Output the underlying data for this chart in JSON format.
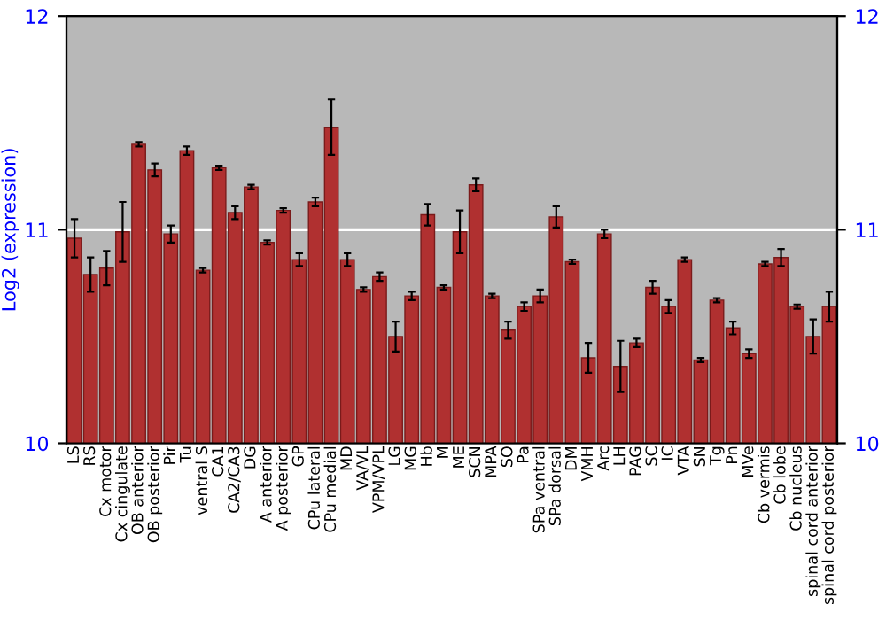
{
  "chart_data": {
    "type": "bar",
    "ylabel": "Log2 (expression)",
    "categories": [
      "LS",
      "RS",
      "Cx motor",
      "Cx cingulate",
      "OB anterior",
      "OB posterior",
      "Pir",
      "Tu",
      "ventral S",
      "CA1",
      "CA2/CA3",
      "DG",
      "A anterior",
      "A posterior",
      "GP",
      "CPu lateral",
      "CPu medial",
      "MD",
      "VA/VL",
      "VPM/VPL",
      "LG",
      "MG",
      "Hb",
      "M",
      "ME",
      "SCN",
      "MPA",
      "SO",
      "Pa",
      "SPa ventral",
      "SPa dorsal",
      "DM",
      "VMH",
      "Arc",
      "LH",
      "PAG",
      "SC",
      "IC",
      "VTA",
      "SN",
      "Tg",
      "Pn",
      "MVe",
      "Cb vermis",
      "Cb lobe",
      "Cb nucleus",
      "spinal cord anterior",
      "spinal cord posterior"
    ],
    "values": [
      10.96,
      10.79,
      10.82,
      10.99,
      11.4,
      11.28,
      10.98,
      11.37,
      10.81,
      11.29,
      11.08,
      11.2,
      10.94,
      11.09,
      10.86,
      11.13,
      11.48,
      10.86,
      10.72,
      10.78,
      10.5,
      10.69,
      11.07,
      10.73,
      10.99,
      11.21,
      10.69,
      10.53,
      10.64,
      10.69,
      11.06,
      10.85,
      10.4,
      10.98,
      10.36,
      10.47,
      10.73,
      10.64,
      10.86,
      10.39,
      10.67,
      10.54,
      10.42,
      10.84,
      10.87,
      10.64,
      10.5,
      10.64
    ],
    "errors": [
      0.09,
      0.08,
      0.08,
      0.14,
      0.01,
      0.03,
      0.04,
      0.02,
      0.01,
      0.01,
      0.03,
      0.01,
      0.01,
      0.01,
      0.03,
      0.02,
      0.13,
      0.03,
      0.01,
      0.02,
      0.07,
      0.02,
      0.05,
      0.01,
      0.1,
      0.03,
      0.01,
      0.04,
      0.02,
      0.03,
      0.05,
      0.01,
      0.07,
      0.02,
      0.12,
      0.02,
      0.03,
      0.03,
      0.01,
      0.01,
      0.01,
      0.03,
      0.02,
      0.01,
      0.04,
      0.01,
      0.08,
      0.07
    ],
    "color": "#b03030",
    "ylim": [
      10,
      12
    ],
    "yticks": [
      10,
      11,
      12
    ],
    "y2lim": [
      10,
      12
    ],
    "y2ticks": [
      10,
      11,
      12
    ],
    "ref_lines": [
      {
        "axis": "y",
        "value": 11,
        "color": "#ffffff"
      }
    ]
  }
}
